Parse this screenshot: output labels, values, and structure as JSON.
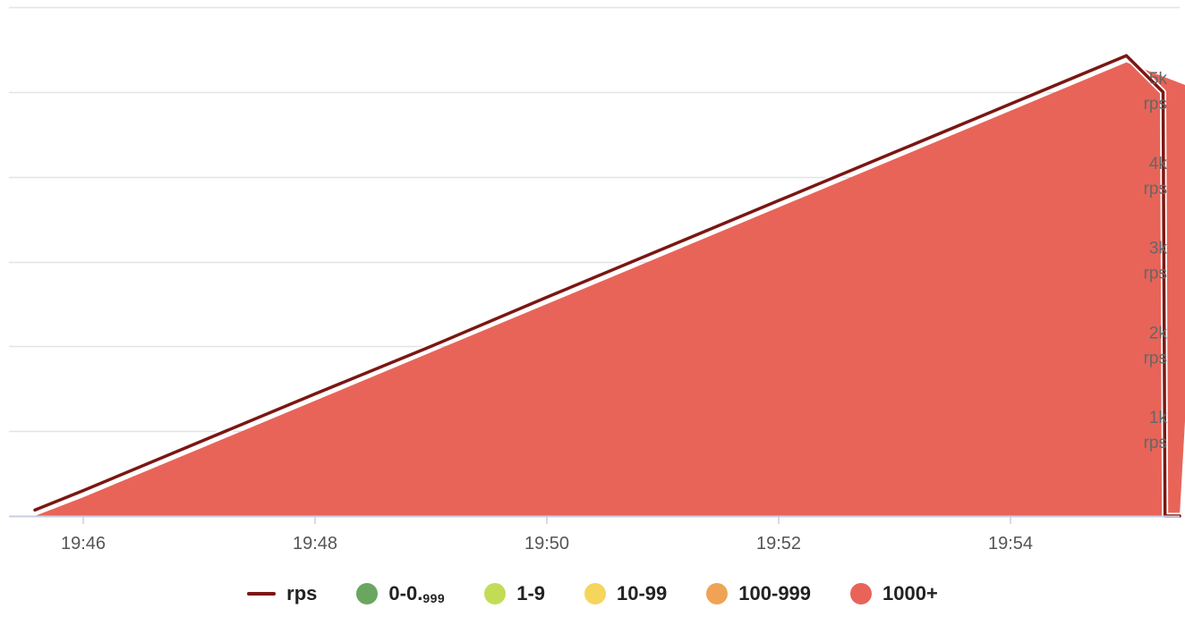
{
  "chart_data": {
    "type": "area",
    "x_tick_labels": [
      "19:46",
      "19:48",
      "19:50",
      "19:52",
      "19:54"
    ],
    "x_tick_minutes": [
      0,
      2,
      4,
      6,
      8
    ],
    "y_ticks": [
      {
        "value": 1000,
        "label": "1k",
        "unit": "rps"
      },
      {
        "value": 2000,
        "label": "2k",
        "unit": "rps"
      },
      {
        "value": 3000,
        "label": "3k",
        "unit": "rps"
      },
      {
        "value": 4000,
        "label": "4k",
        "unit": "rps"
      },
      {
        "value": 5000,
        "label": "5k",
        "unit": "rps"
      }
    ],
    "ylim": [
      0,
      6000
    ],
    "grid": true,
    "legend_position": "bottom",
    "series": [
      {
        "name": "rps",
        "kind": "line",
        "color": "#7b1713",
        "x": [
          "19:45:35",
          "19:46:00",
          "19:47:00",
          "19:48:00",
          "19:49:00",
          "19:50:00",
          "19:51:00",
          "19:52:00",
          "19:53:00",
          "19:54:00",
          "19:55:00",
          "19:55:19",
          "19:55:20",
          "19:55:40"
        ],
        "y": [
          70,
          300,
          870,
          1440,
          2000,
          2580,
          3150,
          3720,
          4290,
          4860,
          5430,
          5000,
          0,
          0
        ]
      },
      {
        "name": "1000+",
        "kind": "area",
        "color": "#e86458",
        "x": [
          "19:45:35",
          "19:46:00",
          "19:47:00",
          "19:48:00",
          "19:49:00",
          "19:50:00",
          "19:51:00",
          "19:52:00",
          "19:53:00",
          "19:54:00",
          "19:55:00",
          "19:55:40"
        ],
        "y": [
          0,
          220,
          790,
          1360,
          1930,
          2500,
          3070,
          3640,
          4210,
          4780,
          5350,
          5000
        ]
      }
    ],
    "legend": [
      {
        "id": "rps",
        "label": "rps",
        "sub": "",
        "color": "#7b1713",
        "shape": "line"
      },
      {
        "id": "0-0999",
        "label": "0-0.",
        "sub": "999",
        "color": "#6aa660",
        "shape": "dot"
      },
      {
        "id": "1-9",
        "label": "1-9",
        "sub": "",
        "color": "#c3dc56",
        "shape": "dot"
      },
      {
        "id": "10-99",
        "label": "10-99",
        "sub": "",
        "color": "#f6d55c",
        "shape": "dot"
      },
      {
        "id": "100-999",
        "label": "100-999",
        "sub": "",
        "color": "#f0a354",
        "shape": "dot"
      },
      {
        "id": "1000plus",
        "label": "1000+",
        "sub": "",
        "color": "#e86458",
        "shape": "dot"
      }
    ]
  }
}
